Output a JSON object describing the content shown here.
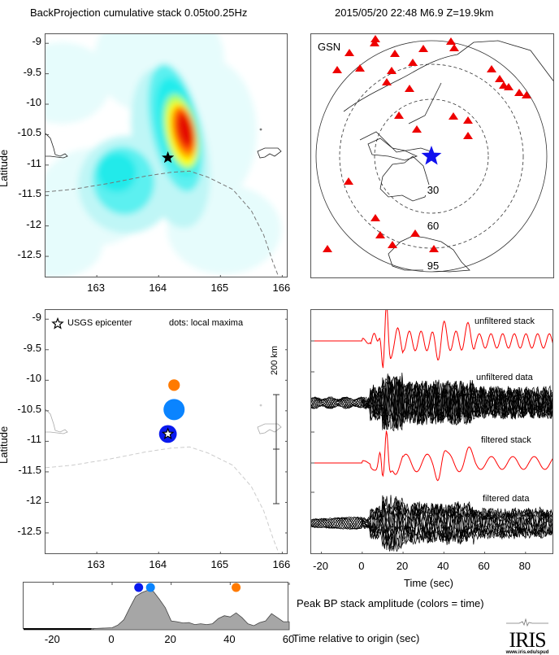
{
  "header": {
    "left_title": "BackProjection cumulative stack 0.05to0.25Hz",
    "right_title": "2015/05/20 22:48  M6.9  Z=19.9km"
  },
  "colors": {
    "stack_trace": "#ff0000",
    "data_trace": "#000000",
    "epicenter_map": "#1010ee",
    "station": "#ee0000",
    "dot_early": "#0a1aee",
    "dot_mid": "#0a84ff",
    "dot_late": "#ff7a00",
    "amplitude_fill": "#a6a6a6"
  },
  "chart_data": [
    {
      "id": "cumulative-stack-map",
      "type": "heatmap",
      "title": "BackProjection cumulative stack 0.05to0.25Hz",
      "xlabel": "",
      "ylabel": "Latitude",
      "xlim": [
        162.17,
        166.1
      ],
      "ylim": [
        -12.86,
        -8.85
      ],
      "xticks": [
        "163",
        "164",
        "165",
        "166"
      ],
      "xtick_values": [
        163,
        164,
        165,
        166
      ],
      "yticks": [
        "-9",
        "-9.5",
        "-10",
        "-10.5",
        "-11",
        "-11.5",
        "-12",
        "-12.5"
      ],
      "ytick_values": [
        -9,
        -9.5,
        -10,
        -10.5,
        -11,
        -11.5,
        -12,
        -12.5
      ],
      "peak": {
        "lon": 164.3,
        "lat": -10.55,
        "value": 1.0
      },
      "secondary_lobe": {
        "lon": 163.5,
        "lat": -11.3,
        "value": 0.45
      },
      "epicenter": {
        "lon": 164.15,
        "lat": -10.88
      },
      "colormap": [
        "#ffffff",
        "#bff8f8",
        "#00f0f0",
        "#9fff6a",
        "#ffff00",
        "#ff8c00",
        "#e81000"
      ]
    },
    {
      "id": "gsn-station-map",
      "type": "scatter",
      "title": "GSN",
      "distance_rings_deg": [
        "30",
        "60",
        "95"
      ],
      "epicenter_marker": "blue-star",
      "station_count": 31
    },
    {
      "id": "local-maxima-map",
      "type": "scatter",
      "ylabel": "Latitude",
      "xlim": [
        162.17,
        166.1
      ],
      "ylim": [
        -12.86,
        -8.85
      ],
      "xticks": [
        "163",
        "164",
        "165",
        "166"
      ],
      "yticks": [
        "-9",
        "-9.5",
        "-10",
        "-10.5",
        "-11",
        "-11.5",
        "-12",
        "-12.5"
      ],
      "legend_star": "USGS epicenter",
      "legend_dots": "dots: local maxima",
      "scale_bar_label": "200 km",
      "points": [
        {
          "lon": 164.15,
          "lat": -10.88,
          "time_sec": 9,
          "size": 0.7,
          "color": "#0a1aee"
        },
        {
          "lon": 164.25,
          "lat": -10.48,
          "time_sec": 13,
          "size": 1.0,
          "color": "#0a84ff"
        },
        {
          "lon": 164.25,
          "lat": -10.08,
          "time_sec": 42,
          "size": 0.3,
          "color": "#ff7a00"
        }
      ]
    },
    {
      "id": "waveforms",
      "type": "line",
      "xlabel": "Time (sec)",
      "xlim": [
        -25,
        94
      ],
      "xticks": [
        "-20",
        "0",
        "20",
        "40",
        "60",
        "80"
      ],
      "xtick_values": [
        -20,
        0,
        20,
        40,
        60,
        80
      ],
      "traces": [
        {
          "label": "unfiltered stack",
          "kind": "stack"
        },
        {
          "label": "unfiltered data",
          "kind": "data"
        },
        {
          "label": "filtered stack",
          "kind": "stack"
        },
        {
          "label": "filtered data",
          "kind": "data"
        }
      ]
    },
    {
      "id": "peak-amplitude",
      "type": "area",
      "title": "Peak BP stack amplitude (colors = time)",
      "xlabel": "Time relative to origin (sec)",
      "xlim": [
        -30,
        60
      ],
      "ylim": [
        0,
        1.05
      ],
      "xticks": [
        "-20",
        "0",
        "20",
        "40",
        "60"
      ],
      "xtick_values": [
        -20,
        0,
        20,
        40,
        60
      ],
      "x": [
        -30,
        -7,
        -6,
        0,
        2,
        4,
        6,
        8,
        10,
        12,
        14,
        16,
        18,
        20,
        22,
        24,
        26,
        28,
        30,
        32,
        34,
        36,
        38,
        40,
        42,
        44,
        46,
        48,
        50,
        52,
        54,
        56,
        58,
        60
      ],
      "values": [
        0,
        0,
        0.03,
        0.05,
        0.12,
        0.25,
        0.55,
        0.83,
        0.92,
        0.98,
        0.95,
        0.76,
        0.55,
        0.22,
        0.2,
        0.17,
        0.18,
        0.13,
        0.15,
        0.13,
        0.15,
        0.28,
        0.35,
        0.32,
        0.42,
        0.3,
        0.15,
        0.1,
        0.18,
        0.22,
        0.4,
        0.3,
        0.2,
        0.2
      ],
      "markers": [
        {
          "time_sec": 9,
          "color": "#0a1aee"
        },
        {
          "time_sec": 13,
          "color": "#0a84ff"
        },
        {
          "time_sec": 42,
          "color": "#ff7a00"
        }
      ]
    }
  ],
  "logo": {
    "name": "IRIS",
    "url_text": "www.iris.edu/spud"
  }
}
